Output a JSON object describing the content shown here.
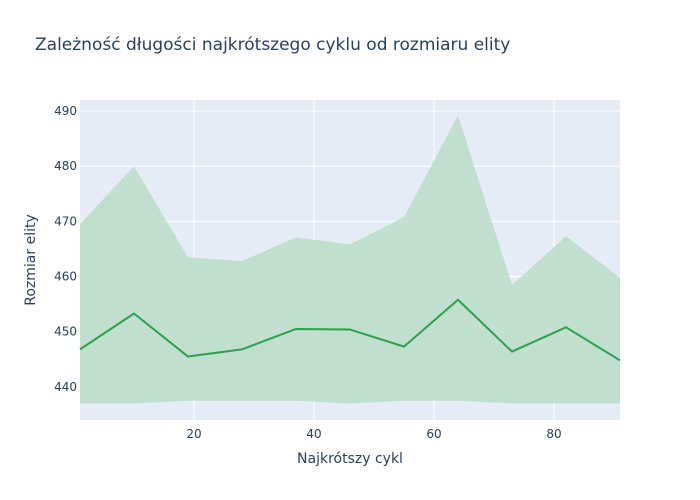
{
  "chart_data": {
    "type": "area",
    "title": "Zależność długości najkrótszego cyklu od rozmiaru elity",
    "xlabel": "Najkrótszy cykl",
    "ylabel": "Rozmiar elity",
    "xlim": [
      1,
      91
    ],
    "ylim": [
      434,
      492
    ],
    "x_ticks": [
      20,
      40,
      60,
      80
    ],
    "y_ticks": [
      440,
      450,
      460,
      470,
      480,
      490
    ],
    "grid": true,
    "legend": "none",
    "x": [
      1,
      10,
      19,
      28,
      37,
      46,
      55,
      64,
      73,
      82,
      91
    ],
    "series": [
      {
        "role": "mean",
        "values": [
          446.8,
          453.3,
          445.5,
          446.8,
          450.5,
          450.4,
          447.3,
          455.8,
          446.4,
          450.8,
          444.8
        ]
      },
      {
        "role": "upper",
        "values": [
          469.5,
          480.0,
          463.5,
          462.8,
          467.1,
          465.8,
          470.8,
          489.2,
          458.5,
          467.3,
          459.8
        ]
      },
      {
        "role": "lower",
        "values": [
          437.0,
          437.0,
          437.5,
          437.5,
          437.5,
          437.0,
          437.5,
          437.5,
          437.0,
          437.0,
          437.0
        ]
      }
    ],
    "colors": {
      "plot_bg": "#e5ecf6",
      "grid": "#ffffff",
      "line": "#2ca24a",
      "band": "#b8dcc6"
    }
  }
}
